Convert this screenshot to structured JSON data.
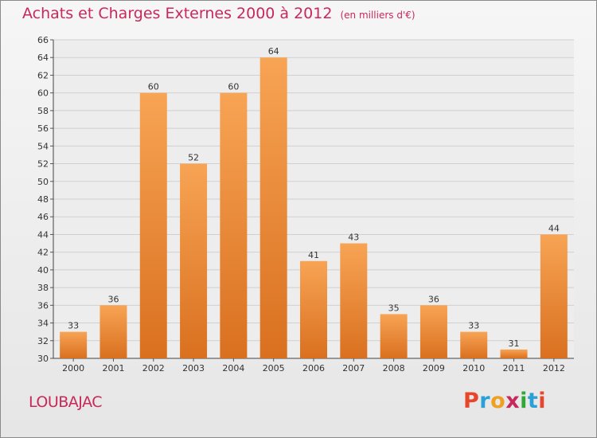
{
  "chart_data": {
    "type": "bar",
    "title": "Achats et Charges Externes 2000 à 2012",
    "subtitle": "(en milliers d'€)",
    "categories": [
      "2000",
      "2001",
      "2002",
      "2003",
      "2004",
      "2005",
      "2006",
      "2007",
      "2008",
      "2009",
      "2010",
      "2011",
      "2012"
    ],
    "values": [
      33,
      36,
      60,
      52,
      60,
      64,
      41,
      43,
      35,
      36,
      33,
      31,
      44
    ],
    "ylim": [
      30,
      66
    ],
    "yticks": [
      30,
      32,
      34,
      36,
      38,
      40,
      42,
      44,
      46,
      48,
      50,
      52,
      54,
      56,
      58,
      60,
      62,
      64,
      66
    ],
    "grid": true,
    "bar_color_top": "#f7a454",
    "bar_color_bottom": "#d9701f",
    "title_color": "#c8285a"
  },
  "location": "LOUBAJAC",
  "logo": {
    "letters": [
      "P",
      "r",
      "o",
      "x",
      "i",
      "t",
      "i"
    ],
    "colors": [
      "#e8462a",
      "#2aa0d8",
      "#f0a020",
      "#c8285a",
      "#30a838",
      "#2aa0d8",
      "#e8462a"
    ]
  }
}
